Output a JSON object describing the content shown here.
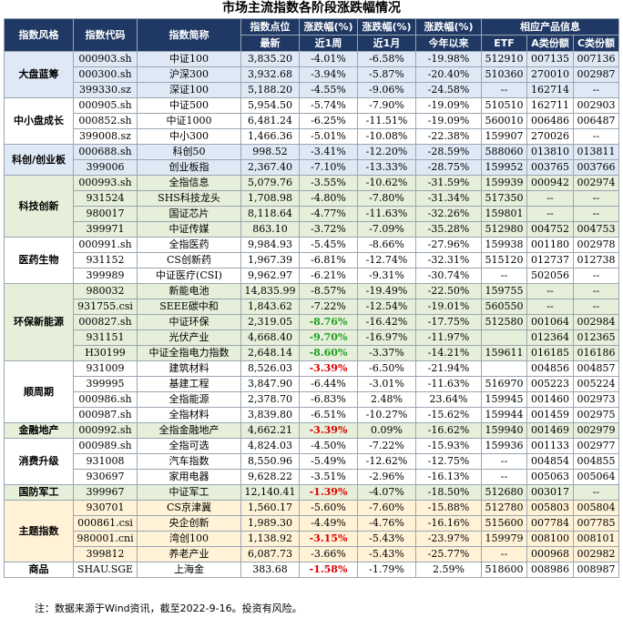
{
  "title": "市场主流指数各阶段涨跌幅情况",
  "header": {
    "style": "指数风格",
    "code": "指数代码",
    "name": "指数简称",
    "point_top": "指数点位",
    "point_bottom": "最新",
    "chg1_top": "涨跌幅(%)",
    "chg1_bottom": "近1周",
    "chg2_top": "涨跌幅(%)",
    "chg2_bottom": "近1月",
    "chg3_top": "涨跌幅(%)",
    "chg3_bottom": "今年以来",
    "products_top": "相应产品信息",
    "etf": "ETF",
    "classA": "A类份额",
    "classC": "C类份额"
  },
  "groups": [
    {
      "name": "大盘蓝筹",
      "rows": [
        {
          "code": "000903.sh",
          "name": "中证100",
          "point": "3,835.20",
          "w": "-4.01%",
          "m": "-6.58%",
          "y": "-19.98%",
          "etf": "512910",
          "a": "007135",
          "c": "007136"
        },
        {
          "code": "000300.sh",
          "name": "沪深300",
          "point": "3,932.68",
          "w": "-3.94%",
          "m": "-5.87%",
          "y": "-20.40%",
          "etf": "510360",
          "a": "270010",
          "c": "002987"
        },
        {
          "code": "399330.sz",
          "name": "深证100",
          "point": "5,188.20",
          "w": "-4.55%",
          "m": "-9.06%",
          "y": "-24.58%",
          "etf": "--",
          "a": "162714",
          "c": "--"
        }
      ]
    },
    {
      "name": "中小盘成长",
      "rows": [
        {
          "code": "000905.sh",
          "name": "中证500",
          "point": "5,954.50",
          "w": "-5.74%",
          "m": "-7.90%",
          "y": "-19.09%",
          "etf": "510510",
          "a": "162711",
          "c": "002903"
        },
        {
          "code": "000852.sh",
          "name": "中证1000",
          "point": "6,481.24",
          "w": "-6.25%",
          "m": "-11.51%",
          "y": "-19.09%",
          "etf": "560010",
          "a": "006486",
          "c": "006487"
        },
        {
          "code": "399008.sz",
          "name": "中小300",
          "point": "1,466.36",
          "w": "-5.01%",
          "m": "-10.08%",
          "y": "-22.38%",
          "etf": "159907",
          "a": "270026",
          "c": "--"
        }
      ]
    },
    {
      "name": "科创/创业板",
      "rows": [
        {
          "code": "000688.sh",
          "name": "科创50",
          "point": "998.52",
          "w": "-3.41%",
          "m": "-12.20%",
          "y": "-28.59%",
          "etf": "588060",
          "a": "013810",
          "c": "013811"
        },
        {
          "code": "399006",
          "name": "创业板指",
          "point": "2,367.40",
          "w": "-7.10%",
          "m": "-13.33%",
          "y": "-28.75%",
          "etf": "159952",
          "a": "003765",
          "c": "003766"
        }
      ]
    },
    {
      "name": "科技创新",
      "rows": [
        {
          "code": "000993.sh",
          "name": "全指信息",
          "point": "5,079.76",
          "w": "-3.55%",
          "m": "-10.62%",
          "y": "-31.59%",
          "etf": "159939",
          "a": "000942",
          "c": "002974"
        },
        {
          "code": "931524",
          "name": "SHS科技龙头",
          "point": "1,708.98",
          "w": "-4.80%",
          "m": "-7.80%",
          "y": "-31.34%",
          "etf": "517350",
          "a": "--",
          "c": "--"
        },
        {
          "code": "980017",
          "name": "国证芯片",
          "point": "8,118.64",
          "w": "-4.77%",
          "m": "-11.63%",
          "y": "-32.26%",
          "etf": "159801",
          "a": "--",
          "c": "--"
        },
        {
          "code": "399971",
          "name": "中证传媒",
          "point": "863.10",
          "w": "-3.72%",
          "m": "-7.09%",
          "y": "-35.28%",
          "etf": "512980",
          "a": "004752",
          "c": "004753"
        }
      ]
    },
    {
      "name": "医药生物",
      "rows": [
        {
          "code": "000991.sh",
          "name": "全指医药",
          "point": "9,984.93",
          "w": "-5.45%",
          "m": "-8.66%",
          "y": "-27.96%",
          "etf": "159938",
          "a": "001180",
          "c": "002978"
        },
        {
          "code": "931152",
          "name": "CS创新药",
          "point": "1,967.39",
          "w": "-6.81%",
          "m": "-12.74%",
          "y": "-32.31%",
          "etf": "515120",
          "a": "012737",
          "c": "012738"
        },
        {
          "code": "399989",
          "name": "中证医疗(CSI)",
          "point": "9,962.97",
          "w": "-6.21%",
          "m": "-9.31%",
          "y": "-30.74%",
          "etf": "--",
          "a": "502056",
          "c": "--"
        }
      ]
    },
    {
      "name": "环保新能源",
      "rows": [
        {
          "code": "980032",
          "name": "新能电池",
          "point": "14,835.99",
          "w": "-8.57%",
          "m": "-19.49%",
          "y": "-22.50%",
          "etf": "159755",
          "a": "--",
          "c": "--"
        },
        {
          "code": "931755.csi",
          "name": "SEEE碳中和",
          "point": "1,843.62",
          "w": "-7.22%",
          "m": "-12.54%",
          "y": "-19.01%",
          "etf": "560550",
          "a": "--",
          "c": "--"
        },
        {
          "code": "000827.sh",
          "name": "中证环保",
          "point": "2,319.05",
          "w": "-8.76%",
          "wc": "green",
          "m": "-16.42%",
          "y": "-17.75%",
          "etf": "512580",
          "a": "001064",
          "c": "002984"
        },
        {
          "code": "931151",
          "name": "光伏产业",
          "point": "4,668.40",
          "w": "-9.70%",
          "wc": "green",
          "m": "-16.97%",
          "y": "-11.97%",
          "etf": "",
          "a": "012364",
          "c": "012365"
        },
        {
          "code": "H30199",
          "name": "中证全指电力指数",
          "point": "2,648.14",
          "w": "-8.60%",
          "wc": "green",
          "m": "-3.37%",
          "y": "-14.21%",
          "etf": "159611",
          "a": "016185",
          "c": "016186"
        }
      ]
    },
    {
      "name": "顺周期",
      "rows": [
        {
          "code": "931009",
          "name": "建筑材料",
          "point": "8,526.03",
          "w": "-3.39%",
          "wc": "red",
          "m": "-6.50%",
          "y": "-21.94%",
          "etf": "",
          "a": "004856",
          "c": "004857"
        },
        {
          "code": "399995",
          "name": "基建工程",
          "point": "3,847.90",
          "w": "-6.44%",
          "m": "-3.01%",
          "y": "-11.63%",
          "etf": "516970",
          "a": "005223",
          "c": "005224"
        },
        {
          "code": "000986.sh",
          "name": "全指能源",
          "point": "2,378.70",
          "w": "-6.83%",
          "m": "2.48%",
          "y": "23.64%",
          "etf": "159945",
          "a": "001460",
          "c": "002973"
        },
        {
          "code": "000987.sh",
          "name": "全指材料",
          "point": "3,839.80",
          "w": "-6.51%",
          "m": "-10.27%",
          "y": "-15.62%",
          "etf": "159944",
          "a": "001459",
          "c": "002975"
        }
      ]
    },
    {
      "name": "金融地产",
      "rows": [
        {
          "code": "000992.sh",
          "name": "全指金融地产",
          "point": "4,662.21",
          "w": "-3.39%",
          "wc": "red",
          "m": "0.09%",
          "y": "-16.62%",
          "etf": "159940",
          "a": "001469",
          "c": "002979"
        }
      ]
    },
    {
      "name": "消费升级",
      "rows": [
        {
          "code": "000989.sh",
          "name": "全指可选",
          "point": "4,824.03",
          "w": "-4.50%",
          "m": "-7.22%",
          "y": "-15.93%",
          "etf": "159936",
          "a": "001133",
          "c": "002977"
        },
        {
          "code": "931008",
          "name": "汽车指数",
          "point": "8,550.96",
          "w": "-5.49%",
          "m": "-12.62%",
          "y": "-12.75%",
          "etf": "--",
          "a": "004854",
          "c": "004855"
        },
        {
          "code": "930697",
          "name": "家用电器",
          "point": "9,628.22",
          "w": "-3.51%",
          "m": "-2.96%",
          "y": "-16.13%",
          "etf": "--",
          "a": "005063",
          "c": "005064"
        }
      ]
    },
    {
      "name": "国防军工",
      "rows": [
        {
          "code": "399967",
          "name": "中证军工",
          "point": "12,140.41",
          "w": "-1.39%",
          "wc": "red",
          "m": "-4.07%",
          "y": "-18.50%",
          "etf": "512680",
          "a": "003017",
          "c": "--"
        }
      ]
    },
    {
      "name": "主题指数",
      "rows": [
        {
          "code": "930701",
          "name": "CS京津冀",
          "point": "1,560.17",
          "w": "-5.60%",
          "m": "-7.60%",
          "y": "-15.88%",
          "etf": "512780",
          "a": "005803",
          "c": "005804"
        },
        {
          "code": "000861.csi",
          "name": "央企创新",
          "point": "1,989.30",
          "w": "-4.49%",
          "m": "-4.76%",
          "y": "-16.16%",
          "etf": "515600",
          "a": "007784",
          "c": "007785"
        },
        {
          "code": "980001.cni",
          "name": "湾创100",
          "point": "1,138.92",
          "w": "-3.15%",
          "wc": "red",
          "m": "-5.43%",
          "y": "-23.97%",
          "etf": "159979",
          "a": "008100",
          "c": "008101"
        },
        {
          "code": "399812",
          "name": "养老产业",
          "point": "6,087.73",
          "w": "-3.66%",
          "m": "-5.43%",
          "y": "-25.77%",
          "etf": "--",
          "a": "000968",
          "c": "002982"
        }
      ]
    },
    {
      "name": "商品",
      "rows": [
        {
          "code": "SHAU.SGE",
          "name": "上海金",
          "point": "383.68",
          "w": "-1.58%",
          "wc": "red",
          "m": "-1.79%",
          "y": "2.59%",
          "etf": "518600",
          "a": "008986",
          "c": "008987"
        }
      ]
    }
  ],
  "note": "注：数据来源于Wind资讯，截至2022-9-16。投资有风险。"
}
